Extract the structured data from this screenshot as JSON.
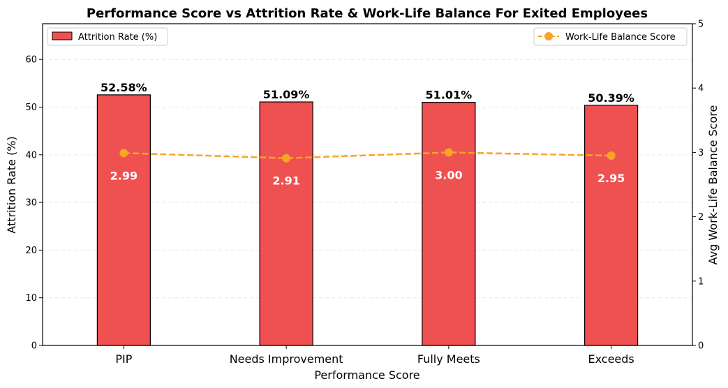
{
  "chart_data": {
    "type": "bar",
    "title": "Performance Score vs Attrition Rate & Work-Life Balance For Exited Employees",
    "xlabel": "Performance Score",
    "ylabel": "Attrition Rate (%)",
    "y2label": "Avg Work-Life Balance Score",
    "categories": [
      "PIP",
      "Needs Improvement",
      "Fully Meets",
      "Exceeds"
    ],
    "ylim": [
      0,
      67.5
    ],
    "y2lim": [
      0,
      5
    ],
    "yticks": [
      0,
      10,
      20,
      30,
      40,
      50,
      60
    ],
    "y2ticks": [
      0,
      1,
      2,
      3,
      4,
      5
    ],
    "grid": true,
    "series": [
      {
        "name": "Attrition Rate (%)",
        "type": "bar",
        "axis": "left",
        "values": [
          52.58,
          51.09,
          51.01,
          50.39
        ],
        "labels": [
          "52.58%",
          "51.09%",
          "51.01%",
          "50.39%"
        ],
        "color": "#ef5050"
      },
      {
        "name": "Work-Life Balance Score",
        "type": "line",
        "axis": "right",
        "values": [
          2.99,
          2.91,
          3.0,
          2.95
        ],
        "labels": [
          "2.99",
          "2.91",
          "3.00",
          "2.95"
        ],
        "color": "#f5a623"
      }
    ],
    "legend": [
      {
        "label": "Attrition Rate (%)",
        "position": "top-left"
      },
      {
        "label": "Work-Life Balance Score",
        "position": "top-right"
      }
    ]
  }
}
